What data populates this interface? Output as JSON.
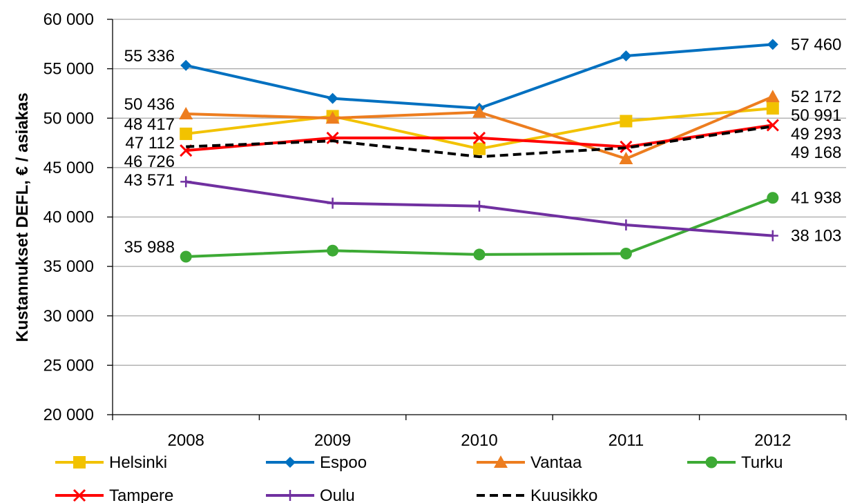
{
  "chart_data": {
    "type": "line",
    "x": [
      "2008",
      "2009",
      "2010",
      "2011",
      "2012"
    ],
    "ylabel": "Kustannukset DEFL, € / asiakas",
    "xlabel": "",
    "title": "",
    "ylim": [
      20000,
      60000
    ],
    "yticks": [
      20000,
      25000,
      30000,
      35000,
      40000,
      45000,
      50000,
      55000,
      60000
    ],
    "ytick_labels": [
      "20 000",
      "25 000",
      "30 000",
      "35 000",
      "40 000",
      "45 000",
      "50 000",
      "55 000",
      "60 000"
    ],
    "grid": true,
    "legend": "bottom",
    "series": [
      {
        "name": "Helsinki",
        "color": "#F2C200",
        "marker": "square",
        "dash": false,
        "values": [
          48417,
          50200,
          46900,
          49700,
          50991
        ],
        "labels": [
          {
            "i": 0,
            "text": "48 417"
          },
          {
            "i": 4,
            "text": "50 991"
          }
        ]
      },
      {
        "name": "Espoo",
        "color": "#0070C0",
        "marker": "diamond",
        "dash": false,
        "values": [
          55336,
          52000,
          51000,
          56300,
          57460
        ],
        "labels": [
          {
            "i": 0,
            "text": "55 336"
          },
          {
            "i": 4,
            "text": "57 460"
          }
        ]
      },
      {
        "name": "Vantaa",
        "color": "#ED7D1F",
        "marker": "triangle",
        "dash": false,
        "values": [
          50436,
          50000,
          50600,
          45900,
          52172
        ],
        "labels": [
          {
            "i": 0,
            "text": "50 436"
          },
          {
            "i": 4,
            "text": "52 172"
          }
        ]
      },
      {
        "name": "Turku",
        "color": "#3DAA35",
        "marker": "circle",
        "dash": false,
        "values": [
          35988,
          36600,
          36200,
          36300,
          41938
        ],
        "labels": [
          {
            "i": 0,
            "text": "35 988"
          },
          {
            "i": 4,
            "text": "41 938"
          }
        ]
      },
      {
        "name": "Tampere",
        "color": "#FF0000",
        "marker": "x",
        "dash": false,
        "values": [
          46726,
          48000,
          48000,
          47100,
          49293
        ],
        "labels": [
          {
            "i": 0,
            "text": "46 726"
          },
          {
            "i": 4,
            "text": "49 293"
          }
        ]
      },
      {
        "name": "Oulu",
        "color": "#7030A0",
        "marker": "plus",
        "dash": false,
        "values": [
          43571,
          41400,
          41100,
          39200,
          38103
        ],
        "labels": [
          {
            "i": 0,
            "text": "43 571"
          },
          {
            "i": 4,
            "text": "38 103"
          }
        ]
      },
      {
        "name": "Kuusikko",
        "color": "#000000",
        "marker": "none",
        "dash": true,
        "values": [
          47112,
          47700,
          46100,
          47000,
          49168
        ],
        "labels": [
          {
            "i": 0,
            "text": "47 112"
          },
          {
            "i": 4,
            "text": "49 168"
          }
        ]
      }
    ]
  }
}
